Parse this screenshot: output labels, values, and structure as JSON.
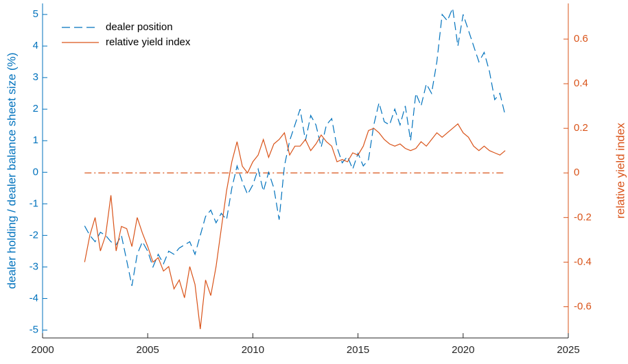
{
  "chart_data": {
    "type": "line",
    "y_label": "dealer holding / dealer balance sheet size (%)",
    "y2_label": "relative yield index",
    "x": [
      2002.0,
      2002.25,
      2002.5,
      2002.75,
      2003.0,
      2003.25,
      2003.5,
      2003.75,
      2004.0,
      2004.25,
      2004.5,
      2004.75,
      2005.0,
      2005.25,
      2005.5,
      2005.75,
      2006.0,
      2006.25,
      2006.5,
      2006.75,
      2007.0,
      2007.25,
      2007.5,
      2007.75,
      2008.0,
      2008.25,
      2008.5,
      2008.75,
      2009.0,
      2009.25,
      2009.5,
      2009.75,
      2010.0,
      2010.25,
      2010.5,
      2010.75,
      2011.0,
      2011.25,
      2011.5,
      2011.75,
      2012.0,
      2012.25,
      2012.5,
      2012.75,
      2013.0,
      2013.25,
      2013.5,
      2013.75,
      2014.0,
      2014.25,
      2014.5,
      2014.75,
      2015.0,
      2015.25,
      2015.5,
      2015.75,
      2016.0,
      2016.25,
      2016.5,
      2016.75,
      2017.0,
      2017.25,
      2017.5,
      2017.75,
      2018.0,
      2018.25,
      2018.5,
      2018.75,
      2019.0,
      2019.25,
      2019.5,
      2019.75,
      2020.0,
      2020.25,
      2020.5,
      2020.75,
      2021.0,
      2021.25,
      2021.5,
      2021.75,
      2022.0
    ],
    "series": [
      {
        "name": "dealer position",
        "color": "#0072bd",
        "dash": "dashed",
        "axis": "y",
        "values": [
          -1.7,
          -2.0,
          -2.2,
          -1.9,
          -2.0,
          -2.2,
          -2.3,
          -2.0,
          -2.8,
          -3.6,
          -2.6,
          -2.2,
          -2.5,
          -3.0,
          -2.6,
          -2.9,
          -2.5,
          -2.6,
          -2.4,
          -2.3,
          -2.2,
          -2.6,
          -2.0,
          -1.4,
          -1.2,
          -1.6,
          -1.3,
          -1.5,
          -0.5,
          0.2,
          -0.3,
          -0.7,
          -0.4,
          0.1,
          -0.6,
          0.0,
          -0.5,
          -1.5,
          0.2,
          1.0,
          1.5,
          2.0,
          1.0,
          1.8,
          1.5,
          0.8,
          1.5,
          1.7,
          0.8,
          0.3,
          0.5,
          0.1,
          0.6,
          0.2,
          0.4,
          1.5,
          2.2,
          1.6,
          1.5,
          2.0,
          1.5,
          2.1,
          1.0,
          2.5,
          2.1,
          2.8,
          2.5,
          3.5,
          5.0,
          4.8,
          5.2,
          4.0,
          5.0,
          4.5,
          4.0,
          3.5,
          3.8,
          3.2,
          2.3,
          2.5,
          1.8
        ]
      },
      {
        "name": "relative yield index",
        "color": "#d95319",
        "dash": "solid",
        "axis": "y2",
        "values": [
          -0.4,
          -0.28,
          -0.2,
          -0.35,
          -0.28,
          -0.1,
          -0.35,
          -0.24,
          -0.25,
          -0.33,
          -0.2,
          -0.27,
          -0.33,
          -0.4,
          -0.38,
          -0.44,
          -0.42,
          -0.52,
          -0.48,
          -0.56,
          -0.42,
          -0.5,
          -0.7,
          -0.48,
          -0.55,
          -0.42,
          -0.25,
          -0.08,
          0.05,
          0.14,
          0.03,
          0.0,
          0.05,
          0.08,
          0.15,
          0.07,
          0.13,
          0.15,
          0.18,
          0.08,
          0.12,
          0.12,
          0.15,
          0.1,
          0.13,
          0.17,
          0.14,
          0.12,
          0.05,
          0.06,
          0.05,
          0.09,
          0.08,
          0.12,
          0.19,
          0.2,
          0.18,
          0.15,
          0.13,
          0.12,
          0.13,
          0.11,
          0.1,
          0.11,
          0.14,
          0.12,
          0.15,
          0.18,
          0.16,
          0.18,
          0.2,
          0.22,
          0.18,
          0.16,
          0.12,
          0.1,
          0.12,
          0.1,
          0.09,
          0.08,
          0.1
        ]
      }
    ],
    "hlines": [
      {
        "axis": "y2",
        "value": 0,
        "color": "#d95319",
        "dash": "dashdot",
        "xlim": [
          2002,
          2022
        ]
      }
    ],
    "xlim": [
      2000,
      2025
    ],
    "xticks": [
      2000,
      2005,
      2010,
      2015,
      2020,
      2025
    ],
    "ylim": [
      -5.25,
      5.35
    ],
    "yticks": [
      -5,
      -4,
      -3,
      -2,
      -1,
      0,
      1,
      2,
      3,
      4,
      5
    ],
    "y2lim": [
      -0.74,
      0.76
    ],
    "y2ticks": [
      -0.6,
      -0.4,
      -0.2,
      0,
      0.2,
      0.4,
      0.6
    ],
    "legend": "upper left",
    "grid": false
  }
}
